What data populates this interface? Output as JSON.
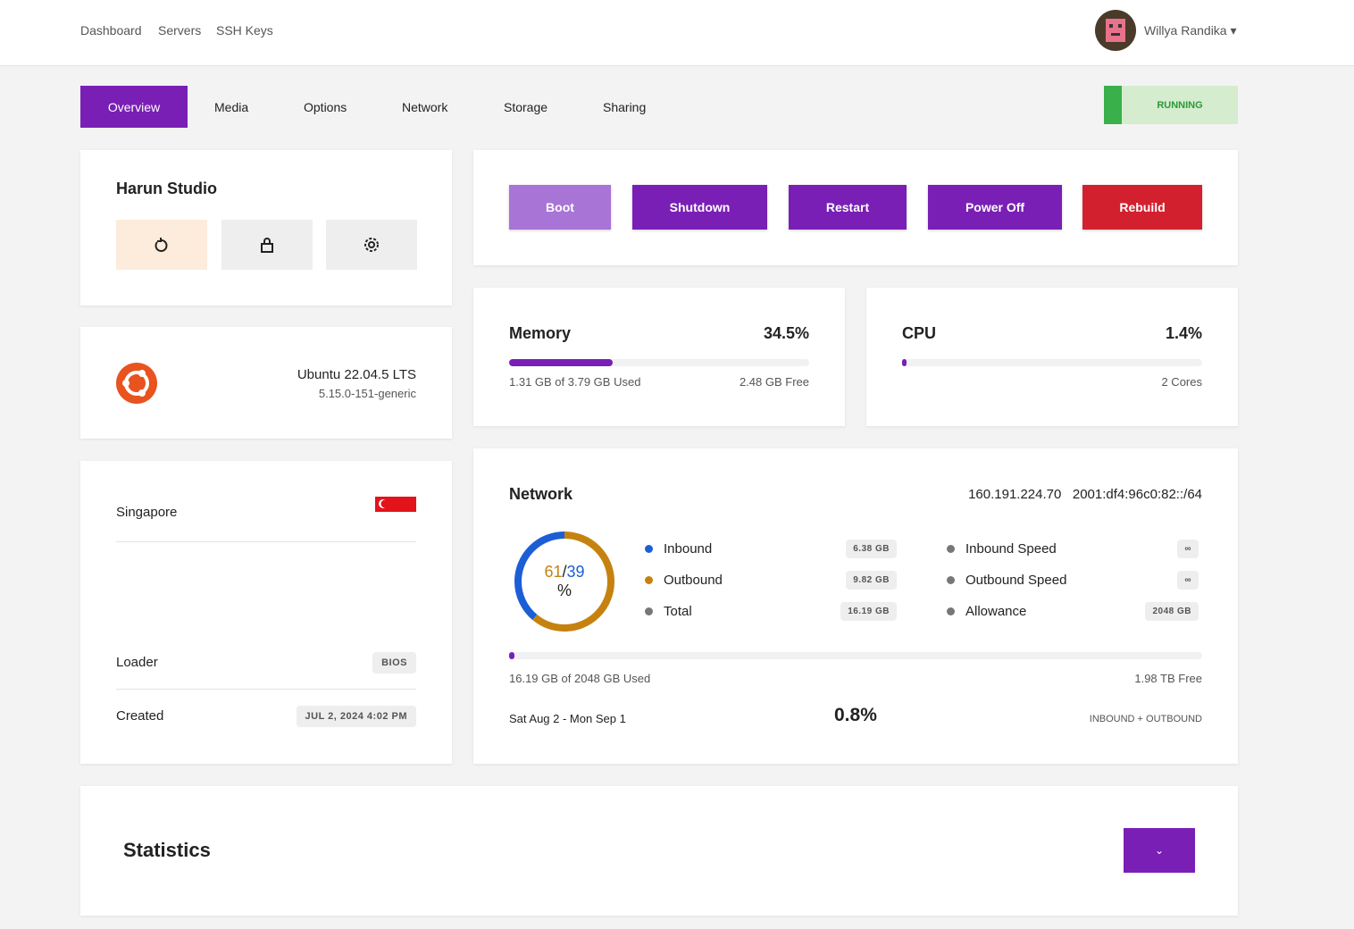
{
  "nav": {
    "links": [
      "Dashboard",
      "Servers",
      "SSH Keys"
    ],
    "user": "Willya Randika"
  },
  "tabs": [
    "Overview",
    "Media",
    "Options",
    "Network",
    "Storage",
    "Sharing"
  ],
  "status": "RUNNING",
  "server": {
    "name": "Harun Studio"
  },
  "os": {
    "name": "Ubuntu 22.04.5 LTS",
    "kernel": "5.15.0-151-generic"
  },
  "location": {
    "name": "Singapore",
    "loader_label": "Loader",
    "loader": "BIOS",
    "created_label": "Created",
    "created": "JUL 2, 2024 4:02 PM"
  },
  "actions": [
    "Boot",
    "Shutdown",
    "Restart",
    "Power Off",
    "Rebuild"
  ],
  "memory": {
    "title": "Memory",
    "percent": {
      "value": 34.5,
      "label": "34.5%"
    },
    "used": "1.31 GB of 3.79 GB Used",
    "free": "2.48 GB Free"
  },
  "cpu": {
    "title": "CPU",
    "percent": {
      "value": 1.4,
      "label": "1.4%"
    },
    "cores": "2 Cores"
  },
  "network": {
    "title": "Network",
    "ipv4": "160.191.224.70",
    "ipv6": "2001:df4:96c0:82::/64",
    "donut": {
      "values": [
        61,
        39
      ],
      "colors": [
        "#c5820f",
        "#1c5ed6"
      ],
      "separator": "/",
      "unit": "%"
    },
    "traffic": [
      {
        "label": "Inbound",
        "value": "6.38 GB",
        "color": "#1c5ed6"
      },
      {
        "label": "Outbound",
        "value": "9.82 GB",
        "color": "#c5820f"
      },
      {
        "label": "Total",
        "value": "16.19 GB",
        "color": "#777777"
      }
    ],
    "limits": [
      {
        "label": "Inbound Speed",
        "value": "∞"
      },
      {
        "label": "Outbound Speed",
        "value": "∞"
      },
      {
        "label": "Allowance",
        "value": "2048 GB"
      }
    ],
    "usage": {
      "value": 0.8,
      "label": "0.8%"
    },
    "used": "16.19 GB of 2048 GB Used",
    "free": "1.98 TB Free",
    "period": "Sat Aug 2 - Mon Sep 1",
    "scope": "INBOUND + OUTBOUND"
  },
  "statistics": {
    "title": "Statistics"
  }
}
